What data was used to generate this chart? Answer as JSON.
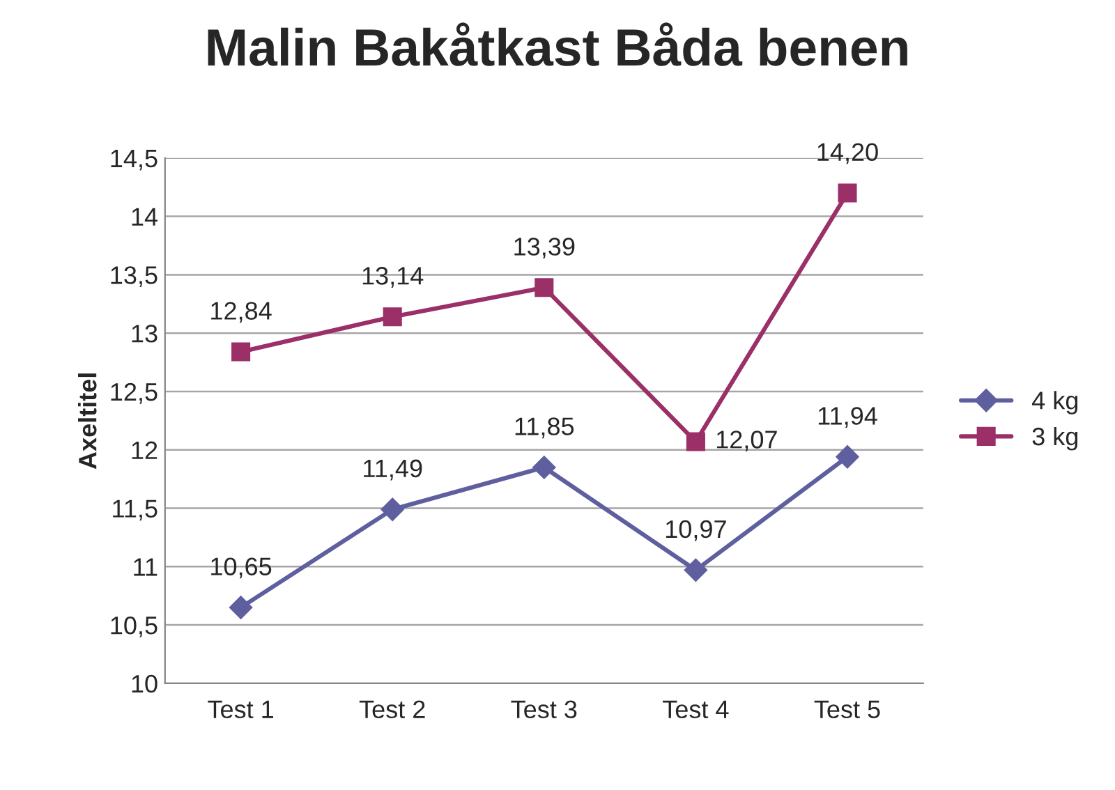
{
  "chart_data": {
    "type": "line",
    "title": "Malin Bakåtkast Båda benen",
    "ylabel": "Axeltitel",
    "categories": [
      "Test 1",
      "Test 2",
      "Test 3",
      "Test 4",
      "Test 5"
    ],
    "series": [
      {
        "name": "4 kg",
        "color": "#5f5f9f",
        "marker": "diamond",
        "values": [
          10.65,
          11.49,
          11.85,
          10.97,
          11.94
        ],
        "value_labels": [
          "10,65",
          "11,49",
          "11,85",
          "10,97",
          "11,94"
        ]
      },
      {
        "name": "3 kg",
        "color": "#9b2f68",
        "marker": "square",
        "values": [
          12.84,
          13.14,
          13.39,
          12.07,
          14.2
        ],
        "value_labels": [
          "12,84",
          "13,14",
          "13,39",
          "12,07",
          "14,20"
        ]
      }
    ],
    "ylim": [
      10,
      14.5
    ],
    "yticks": [
      10,
      {
        "value": 10.5,
        "label": "10,5"
      },
      11,
      {
        "value": 11.5,
        "label": "11,5"
      },
      12,
      {
        "value": 12.5,
        "label": "12,5"
      },
      13,
      {
        "value": 13.5,
        "label": "13,5"
      },
      14,
      {
        "value": 14.5,
        "label": "14,5"
      }
    ],
    "grid": "y",
    "legend": "right",
    "line_style": "solid"
  }
}
